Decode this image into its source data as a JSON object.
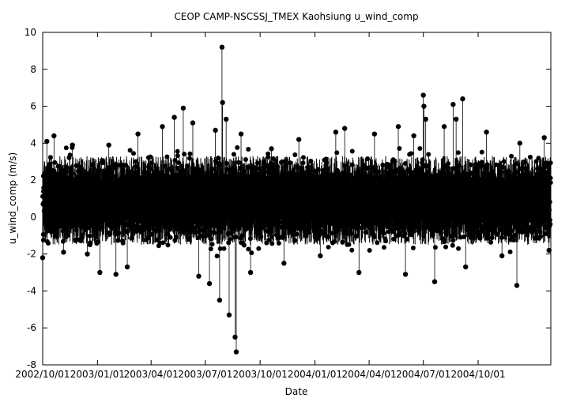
{
  "chart_data": {
    "type": "scatter",
    "title": "CEOP  CAMP-NSCSSJ_TMEX Kaohsiung  u_wind_comp",
    "xlabel": "Date",
    "ylabel": "u_wind_comp (m/s)",
    "ylim": [
      -8,
      10
    ],
    "xlim": [
      "2002-10-01",
      "2005-01-31"
    ],
    "grid": false,
    "series_color": "#000000",
    "y_ticks": [
      {
        "value": -8,
        "label": "-8"
      },
      {
        "value": -6,
        "label": "-6"
      },
      {
        "value": -4,
        "label": "-4"
      },
      {
        "value": -2,
        "label": "-2"
      },
      {
        "value": 0,
        "label": "0"
      },
      {
        "value": 2,
        "label": "2"
      },
      {
        "value": 4,
        "label": "4"
      },
      {
        "value": 6,
        "label": "6"
      },
      {
        "value": 8,
        "label": "8"
      },
      {
        "value": 10,
        "label": "10"
      }
    ],
    "x_ticks": [
      {
        "date": "2002-10-01",
        "label": "2002/10/01"
      },
      {
        "date": "2003-01-01",
        "label": "2003/01/01"
      },
      {
        "date": "2003-04-01",
        "label": "2003/04/01"
      },
      {
        "date": "2003-07-01",
        "label": "2003/07/01"
      },
      {
        "date": "2003-10-01",
        "label": "2003/10/01"
      },
      {
        "date": "2004-01-01",
        "label": "2004/01/01"
      },
      {
        "date": "2004-04-01",
        "label": "2004/04/01"
      },
      {
        "date": "2004-07-01",
        "label": "2004/07/01"
      },
      {
        "date": "2004-10-01",
        "label": "2004/10/01"
      }
    ],
    "points": [
      {
        "date": "2002-10-01",
        "value": -2.2
      },
      {
        "date": "2002-10-08",
        "value": 4.1
      },
      {
        "date": "2002-10-20",
        "value": 4.4
      },
      {
        "date": "2002-11-05",
        "value": -1.9
      },
      {
        "date": "2002-11-20",
        "value": 3.9
      },
      {
        "date": "2002-12-15",
        "value": -2.0
      },
      {
        "date": "2003-01-05",
        "value": -3.0
      },
      {
        "date": "2003-01-20",
        "value": 3.9
      },
      {
        "date": "2003-02-01",
        "value": -3.1
      },
      {
        "date": "2003-02-20",
        "value": -2.7
      },
      {
        "date": "2003-03-10",
        "value": 4.5
      },
      {
        "date": "2003-04-20",
        "value": 4.9
      },
      {
        "date": "2003-05-10",
        "value": 5.4
      },
      {
        "date": "2003-05-25",
        "value": 5.9
      },
      {
        "date": "2003-06-10",
        "value": 5.1
      },
      {
        "date": "2003-06-20",
        "value": -3.2
      },
      {
        "date": "2003-07-08",
        "value": -3.6
      },
      {
        "date": "2003-07-18",
        "value": 4.7
      },
      {
        "date": "2003-07-25",
        "value": -4.5
      },
      {
        "date": "2003-07-29",
        "value": 9.2
      },
      {
        "date": "2003-07-30",
        "value": 6.2
      },
      {
        "date": "2003-08-05",
        "value": 5.3
      },
      {
        "date": "2003-08-10",
        "value": -5.3
      },
      {
        "date": "2003-08-20",
        "value": -6.5
      },
      {
        "date": "2003-08-22",
        "value": -7.3
      },
      {
        "date": "2003-08-30",
        "value": 4.5
      },
      {
        "date": "2003-09-15",
        "value": -3.0
      },
      {
        "date": "2003-10-20",
        "value": 3.7
      },
      {
        "date": "2003-11-10",
        "value": -2.5
      },
      {
        "date": "2003-12-05",
        "value": 4.2
      },
      {
        "date": "2004-01-10",
        "value": -2.1
      },
      {
        "date": "2004-02-05",
        "value": 4.6
      },
      {
        "date": "2004-02-20",
        "value": 4.8
      },
      {
        "date": "2004-03-15",
        "value": -3.0
      },
      {
        "date": "2004-04-10",
        "value": 4.5
      },
      {
        "date": "2004-05-20",
        "value": 4.9
      },
      {
        "date": "2004-06-01",
        "value": -3.1
      },
      {
        "date": "2004-06-15",
        "value": 4.4
      },
      {
        "date": "2004-07-01",
        "value": 6.6
      },
      {
        "date": "2004-07-02",
        "value": 6.0
      },
      {
        "date": "2004-07-05",
        "value": 5.3
      },
      {
        "date": "2004-07-20",
        "value": -3.5
      },
      {
        "date": "2004-08-05",
        "value": 4.9
      },
      {
        "date": "2004-08-20",
        "value": 6.1
      },
      {
        "date": "2004-08-25",
        "value": 5.3
      },
      {
        "date": "2004-09-05",
        "value": 6.4
      },
      {
        "date": "2004-09-10",
        "value": -2.7
      },
      {
        "date": "2004-10-15",
        "value": 4.6
      },
      {
        "date": "2004-11-10",
        "value": -2.1
      },
      {
        "date": "2004-12-05",
        "value": -3.7
      },
      {
        "date": "2004-12-10",
        "value": 4.0
      },
      {
        "date": "2005-01-20",
        "value": 4.3
      },
      {
        "date": "2005-01-28",
        "value": -1.8
      }
    ],
    "band": {
      "typical_low": -1.5,
      "typical_high": 3.3,
      "center": 0.8
    }
  }
}
